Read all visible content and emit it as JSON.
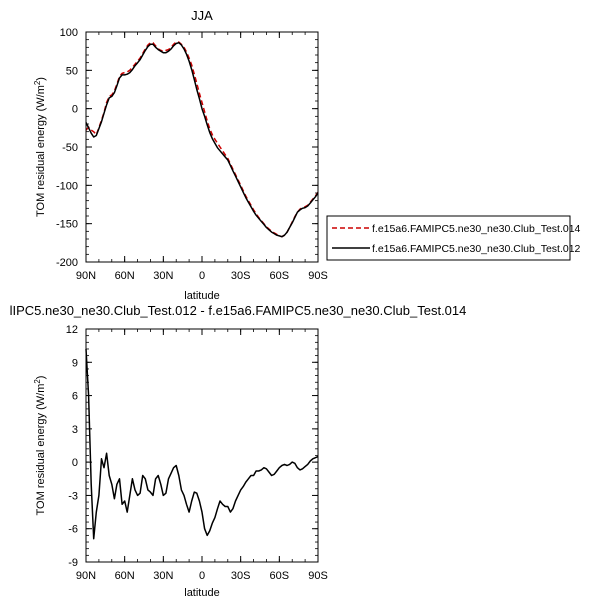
{
  "chart_data": [
    {
      "type": "line",
      "title": "JJA",
      "xlabel": "latitude",
      "ylabel": "TOM residual energy (W/m",
      "ylabel_sup": "2",
      "ylabel_close": ")",
      "xlim": [
        90,
        -90
      ],
      "ylim": [
        -200,
        100
      ],
      "x_ticks": [
        {
          "value": 90,
          "label": "90N"
        },
        {
          "value": 60,
          "label": "60N"
        },
        {
          "value": 30,
          "label": "30N"
        },
        {
          "value": 0,
          "label": "0"
        },
        {
          "value": -30,
          "label": "30S"
        },
        {
          "value": -60,
          "label": "60S"
        },
        {
          "value": -90,
          "label": "90S"
        }
      ],
      "y_ticks": [
        {
          "value": 100,
          "label": "100"
        },
        {
          "value": 50,
          "label": "50"
        },
        {
          "value": 0,
          "label": "0"
        },
        {
          "value": -50,
          "label": "-50"
        },
        {
          "value": -100,
          "label": "-100"
        },
        {
          "value": -150,
          "label": "-150"
        },
        {
          "value": -200,
          "label": "-200"
        }
      ],
      "legend_position": "bottom-right outside",
      "series": [
        {
          "name": "f.e15a6.FAMIPC5.ne30_ne30.Club_Test.014",
          "color": "#cc0000",
          "dash": true,
          "x": [
            90,
            88,
            86,
            84,
            82,
            80,
            78,
            76,
            74,
            72,
            70,
            68,
            66,
            64,
            62,
            60,
            58,
            56,
            54,
            52,
            50,
            48,
            46,
            44,
            42,
            40,
            38,
            36,
            34,
            32,
            30,
            28,
            26,
            24,
            22,
            20,
            18,
            16,
            14,
            12,
            10,
            8,
            6,
            4,
            2,
            0,
            -2,
            -4,
            -6,
            -8,
            -10,
            -12,
            -14,
            -16,
            -18,
            -20,
            -22,
            -24,
            -26,
            -28,
            -30,
            -32,
            -34,
            -36,
            -38,
            -40,
            -42,
            -44,
            -46,
            -48,
            -50,
            -52,
            -54,
            -56,
            -58,
            -60,
            -62,
            -64,
            -66,
            -68,
            -70,
            -72,
            -74,
            -76,
            -78,
            -80,
            -82,
            -84,
            -86,
            -88,
            -90
          ],
          "values": [
            -28,
            -24,
            -28,
            -30,
            -34,
            -25,
            -15,
            -5,
            8,
            16,
            18,
            23,
            32,
            42,
            46,
            47,
            48,
            50,
            54,
            58,
            62,
            66,
            72,
            78,
            83,
            86,
            86,
            82,
            78,
            76,
            75,
            76,
            77,
            80,
            84,
            87,
            87,
            84,
            80,
            74,
            66,
            57,
            45,
            33,
            20,
            8,
            -4,
            -16,
            -26,
            -34,
            -40,
            -45,
            -50,
            -55,
            -60,
            -65,
            -72,
            -79,
            -86,
            -93,
            -100,
            -107,
            -114,
            -120,
            -126,
            -132,
            -137,
            -142,
            -146,
            -150,
            -154,
            -157,
            -160,
            -162,
            -164,
            -166,
            -167,
            -165,
            -161,
            -155,
            -148,
            -141,
            -135,
            -131,
            -129,
            -128,
            -126,
            -122,
            -118,
            -114,
            -109
          ]
        },
        {
          "name": "f.e15a6.FAMIPC5.ne30_ne30.Club_Test.012",
          "color": "#000000",
          "dash": false,
          "x": [
            90,
            88,
            86,
            84,
            82,
            80,
            78,
            76,
            74,
            72,
            70,
            68,
            66,
            64,
            62,
            60,
            58,
            56,
            54,
            52,
            50,
            48,
            46,
            44,
            42,
            40,
            38,
            36,
            34,
            32,
            30,
            28,
            26,
            24,
            22,
            20,
            18,
            16,
            14,
            12,
            10,
            8,
            6,
            4,
            2,
            0,
            -2,
            -4,
            -6,
            -8,
            -10,
            -12,
            -14,
            -16,
            -18,
            -20,
            -22,
            -24,
            -26,
            -28,
            -30,
            -32,
            -34,
            -36,
            -38,
            -40,
            -42,
            -44,
            -46,
            -48,
            -50,
            -52,
            -54,
            -56,
            -58,
            -60,
            -62,
            -64,
            -66,
            -68,
            -70,
            -72,
            -74,
            -76,
            -78,
            -80,
            -82,
            -84,
            -86,
            -88,
            -90
          ],
          "values": [
            -18,
            -25,
            -32,
            -37,
            -35,
            -26,
            -17,
            -6,
            5,
            14,
            16,
            21,
            30,
            40,
            44,
            44,
            45,
            47,
            51,
            56,
            60,
            64,
            70,
            76,
            81,
            84,
            84,
            80,
            77,
            75,
            73,
            73,
            75,
            78,
            82,
            85,
            86,
            83,
            78,
            71,
            62,
            51,
            38,
            25,
            13,
            0,
            -10,
            -21,
            -31,
            -39,
            -45,
            -51,
            -55,
            -59,
            -63,
            -67,
            -74,
            -81,
            -88,
            -95,
            -102,
            -109,
            -116,
            -122,
            -128,
            -134,
            -139,
            -143,
            -147,
            -151,
            -155,
            -158,
            -161,
            -163,
            -165,
            -166,
            -167,
            -165,
            -161,
            -155,
            -149,
            -142,
            -135,
            -132,
            -130,
            -129,
            -127,
            -123,
            -119,
            -115,
            -110
          ]
        }
      ]
    },
    {
      "type": "line",
      "title": "lIPC5.ne30_ne30.Club_Test.012 - f.e15a6.FAMIPC5.ne30_ne30.Club_Test.014",
      "xlabel": "latitude",
      "ylabel": "TOM residual energy (W/m",
      "ylabel_sup": "2",
      "ylabel_close": ")",
      "xlim": [
        90,
        -90
      ],
      "ylim": [
        -9,
        12
      ],
      "x_ticks": [
        {
          "value": 90,
          "label": "90N"
        },
        {
          "value": 60,
          "label": "60N"
        },
        {
          "value": 30,
          "label": "30N"
        },
        {
          "value": 0,
          "label": "0"
        },
        {
          "value": -30,
          "label": "30S"
        },
        {
          "value": -60,
          "label": "60S"
        },
        {
          "value": -90,
          "label": "90S"
        }
      ],
      "y_ticks": [
        {
          "value": 12,
          "label": "12"
        },
        {
          "value": 9,
          "label": "9"
        },
        {
          "value": 6,
          "label": "6"
        },
        {
          "value": 3,
          "label": "3"
        },
        {
          "value": 0,
          "label": "0"
        },
        {
          "value": -3,
          "label": "-3"
        },
        {
          "value": -6,
          "label": "-6"
        },
        {
          "value": -9,
          "label": "-9"
        }
      ],
      "series": [
        {
          "color": "#000000",
          "dash": false,
          "x": [
            90,
            88,
            86,
            84,
            82,
            80,
            78,
            76,
            74,
            72,
            70,
            68,
            66,
            64,
            62,
            60,
            58,
            56,
            54,
            52,
            50,
            48,
            46,
            44,
            42,
            40,
            38,
            36,
            34,
            32,
            30,
            28,
            26,
            24,
            22,
            20,
            18,
            16,
            14,
            12,
            10,
            8,
            6,
            4,
            2,
            0,
            -2,
            -4,
            -6,
            -8,
            -10,
            -12,
            -14,
            -16,
            -18,
            -20,
            -22,
            -24,
            -26,
            -28,
            -30,
            -32,
            -34,
            -36,
            -38,
            -40,
            -42,
            -44,
            -46,
            -48,
            -50,
            -52,
            -54,
            -56,
            -58,
            -60,
            -62,
            -64,
            -66,
            -68,
            -70,
            -72,
            -74,
            -76,
            -78,
            -80,
            -82,
            -84,
            -86,
            -88,
            -90
          ],
          "values": [
            10.2,
            6,
            -2,
            -6.9,
            -4.5,
            -3,
            0.3,
            -0.5,
            0.8,
            -1.2,
            -2,
            -3.3,
            -2,
            -1.5,
            -3.8,
            -3.5,
            -4.5,
            -3,
            -1.5,
            -2.5,
            -3,
            -2.8,
            -1.2,
            -1.5,
            -2.5,
            -2.7,
            -3,
            -1.5,
            -1.2,
            -2,
            -3,
            -2.8,
            -1.5,
            -1,
            -0.5,
            -0.3,
            -1.2,
            -2.5,
            -3,
            -3.8,
            -4.5,
            -3.5,
            -2.7,
            -2.8,
            -3.5,
            -4.5,
            -6,
            -6.6,
            -6.2,
            -5.5,
            -5,
            -4.2,
            -3.5,
            -3.8,
            -4,
            -4,
            -4.5,
            -4.2,
            -3.5,
            -3,
            -2.5,
            -2.2,
            -1.8,
            -1.5,
            -1.2,
            -1.2,
            -0.8,
            -0.8,
            -0.7,
            -0.5,
            -0.6,
            -0.9,
            -1.2,
            -1.1,
            -0.8,
            -0.5,
            -0.3,
            -0.2,
            -0.3,
            -0.2,
            0,
            -0.1,
            -0.5,
            -0.7,
            -0.6,
            -0.4,
            -0.2,
            0.1,
            0.3,
            0.4,
            0.5
          ]
        }
      ]
    }
  ]
}
